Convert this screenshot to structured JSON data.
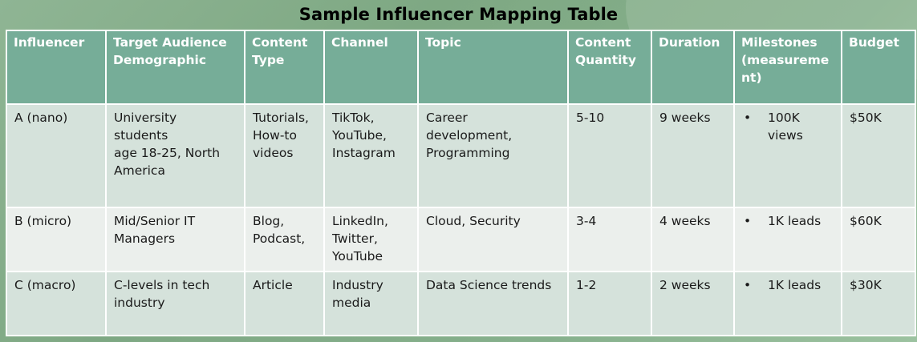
{
  "title": "Sample Influencer Mapping Table",
  "headers": [
    "Influencer",
    "Target Audience\nDemographic",
    "Content\nType",
    "Channel",
    "Topic",
    "Content\nQuantity",
    "Duration",
    "Milestones\n(measureme\nnt)",
    "Budget"
  ],
  "rows": [
    {
      "influencer": "A (nano)",
      "audience": "University\nstudents\nage 18-25, North\nAmerica",
      "content_type": "Tutorials,\nHow-to\nvideos",
      "channel": "TikTok,\nYouTube,\nInstagram",
      "topic": "Career\ndevelopment,\nProgramming",
      "quantity": "5-10",
      "duration": "9 weeks",
      "milestone_bullet": "•",
      "milestone": "100K\nviews",
      "budget": "$50K"
    },
    {
      "influencer": "B (micro)",
      "audience": "Mid/Senior IT\nManagers",
      "content_type": "Blog,\nPodcast,",
      "channel": "LinkedIn,\nTwitter,\nYouTube",
      "topic": "Cloud, Security",
      "quantity": "3-4",
      "duration": "4 weeks",
      "milestone_bullet": "•",
      "milestone": "1K leads",
      "budget": "$60K"
    },
    {
      "influencer": "C (macro)",
      "audience": "C-levels in tech\nindustry",
      "content_type": "Article",
      "channel": "Industry\nmedia",
      "topic": "Data Science trends",
      "quantity": "1-2",
      "duration": "2 weeks",
      "milestone_bullet": "•",
      "milestone": "1K leads",
      "budget": "$30K"
    }
  ],
  "colors": {
    "background": "#86ae8c",
    "header": "#76ad98",
    "row_odd": "#d5e2db",
    "row_even": "#ebefec"
  }
}
